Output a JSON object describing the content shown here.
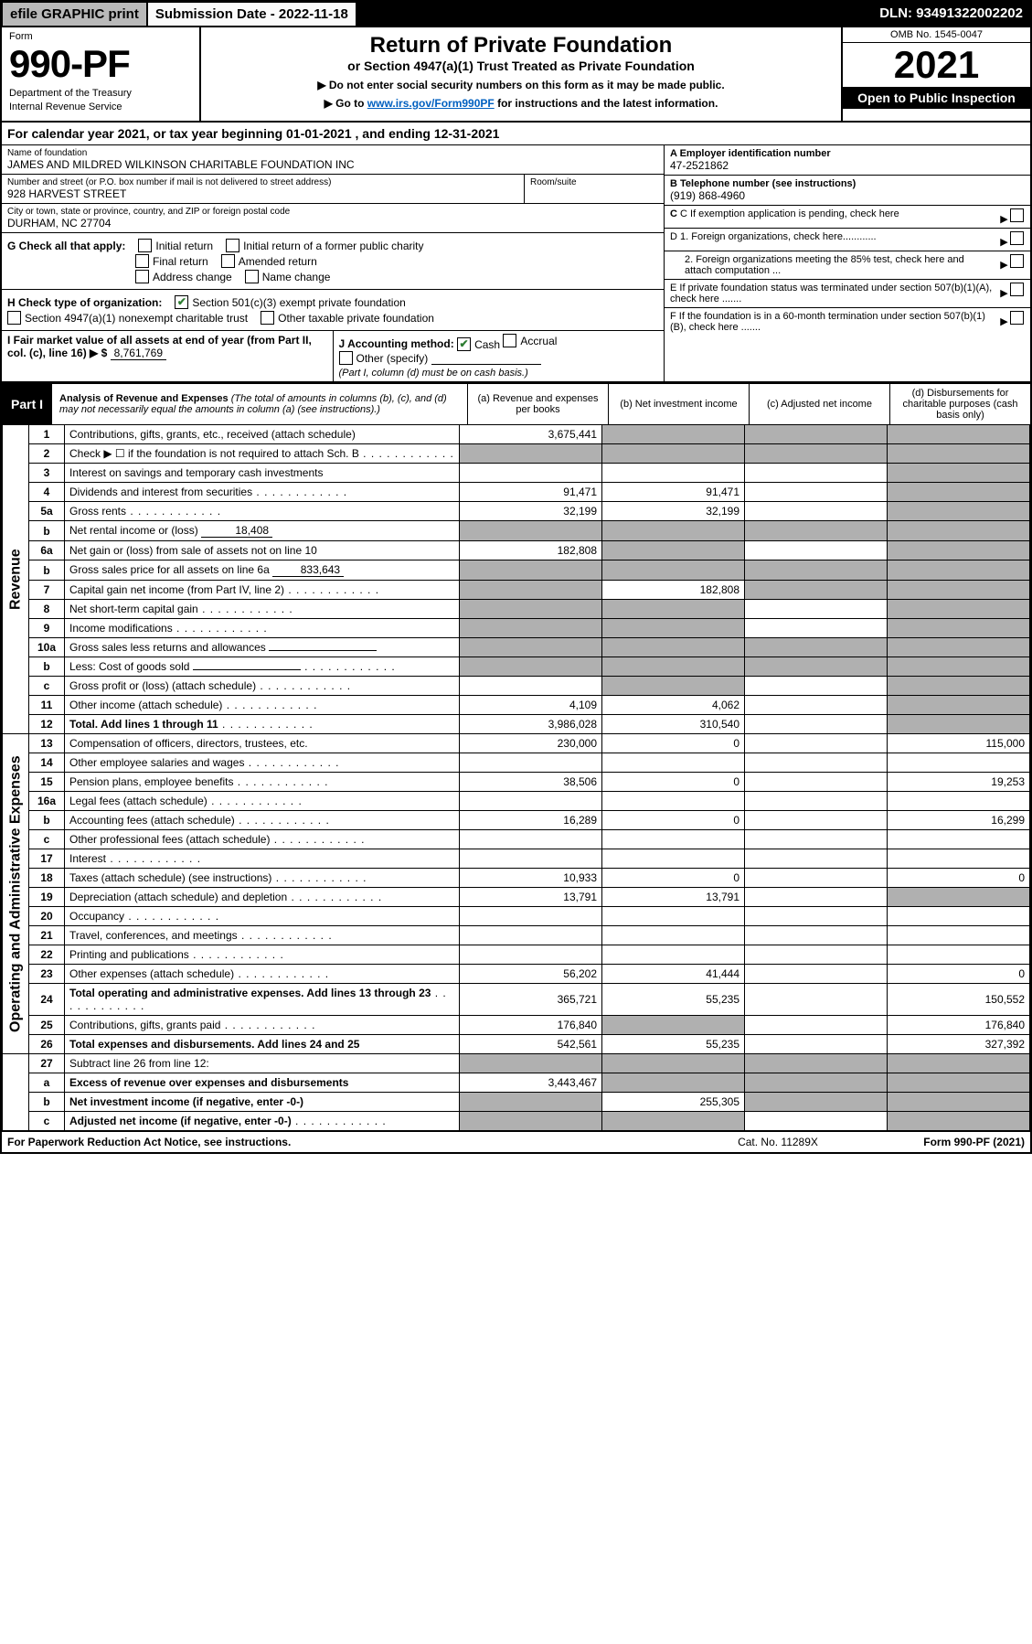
{
  "topbar": {
    "efile": "efile GRAPHIC print",
    "submission": "Submission Date - 2022-11-18",
    "dln": "DLN: 93491322002202"
  },
  "header": {
    "form_label": "Form",
    "form_number": "990-PF",
    "dept1": "Department of the Treasury",
    "dept2": "Internal Revenue Service",
    "title": "Return of Private Foundation",
    "subtitle": "or Section 4947(a)(1) Trust Treated as Private Foundation",
    "note1": "▶ Do not enter social security numbers on this form as it may be made public.",
    "note2_prefix": "▶ Go to ",
    "note2_link": "www.irs.gov/Form990PF",
    "note2_suffix": " for instructions and the latest information.",
    "omb": "OMB No. 1545-0047",
    "year": "2021",
    "inspect": "Open to Public Inspection"
  },
  "calyear": "For calendar year 2021, or tax year beginning 01-01-2021          , and ending 12-31-2021",
  "identity": {
    "name_label": "Name of foundation",
    "name": "JAMES AND MILDRED WILKINSON CHARITABLE FOUNDATION INC",
    "addr_label": "Number and street (or P.O. box number if mail is not delivered to street address)",
    "addr": "928 HARVEST STREET",
    "roomsuite": "Room/suite",
    "city_label": "City or town, state or province, country, and ZIP or foreign postal code",
    "city": "DURHAM, NC  27704",
    "ein_label": "A Employer identification number",
    "ein": "47-2521862",
    "phone_label": "B Telephone number (see instructions)",
    "phone": "(919) 868-4960",
    "c_label": "C If exemption application is pending, check here"
  },
  "checks": {
    "G": "G Check all that apply:",
    "g_items": [
      "Initial return",
      "Final return",
      "Address change",
      "Initial return of a former public charity",
      "Amended return",
      "Name change"
    ],
    "H": "H Check type of organization:",
    "h1": "Section 501(c)(3) exempt private foundation",
    "h2": "Section 4947(a)(1) nonexempt charitable trust",
    "h3": "Other taxable private foundation",
    "I_label": "I Fair market value of all assets at end of year (from Part II, col. (c), line 16) ▶ $",
    "I_value": "8,761,769",
    "J": "J Accounting method:",
    "j_cash": "Cash",
    "j_accrual": "Accrual",
    "j_other": "Other (specify)",
    "j_note": "(Part I, column (d) must be on cash basis.)",
    "D1": "D 1. Foreign organizations, check here............",
    "D2": "2. Foreign organizations meeting the 85% test, check here and attach computation ...",
    "E": "E If private foundation status was terminated under section 507(b)(1)(A), check here .......",
    "F": "F If the foundation is in a 60-month termination under section 507(b)(1)(B), check here ......."
  },
  "part1": {
    "tab": "Part I",
    "title": "Analysis of Revenue and Expenses",
    "subtitle": " (The total of amounts in columns (b), (c), and (d) may not necessarily equal the amounts in column (a) (see instructions).)",
    "cols": {
      "a": "(a) Revenue and expenses per books",
      "b": "(b) Net investment income",
      "c": "(c) Adjusted net income",
      "d": "(d) Disbursements for charitable purposes (cash basis only)"
    }
  },
  "sections": {
    "revenue": "Revenue",
    "operating": "Operating and Administrative Expenses"
  },
  "rows": [
    {
      "sec": "rev",
      "n": "1",
      "desc": "Contributions, gifts, grants, etc., received (attach schedule)",
      "a": "3,675,441",
      "b": "shade",
      "c": "shade",
      "d": "shade"
    },
    {
      "sec": "rev",
      "n": "2",
      "desc": "Check ▶ ☐ if the foundation is not required to attach Sch. B",
      "a": "shade",
      "b": "shade",
      "c": "shade",
      "d": "shade",
      "dots": true
    },
    {
      "sec": "rev",
      "n": "3",
      "desc": "Interest on savings and temporary cash investments",
      "a": "",
      "b": "",
      "c": "",
      "d": "shade"
    },
    {
      "sec": "rev",
      "n": "4",
      "desc": "Dividends and interest from securities",
      "a": "91,471",
      "b": "91,471",
      "c": "",
      "d": "shade",
      "dots": true
    },
    {
      "sec": "rev",
      "n": "5a",
      "desc": "Gross rents",
      "a": "32,199",
      "b": "32,199",
      "c": "",
      "d": "shade",
      "dots": true
    },
    {
      "sec": "rev",
      "n": "b",
      "desc": "Net rental income or (loss)",
      "inline": "18,408",
      "a": "shade",
      "b": "shade",
      "c": "shade",
      "d": "shade"
    },
    {
      "sec": "rev",
      "n": "6a",
      "desc": "Net gain or (loss) from sale of assets not on line 10",
      "a": "182,808",
      "b": "shade",
      "c": "",
      "d": "shade"
    },
    {
      "sec": "rev",
      "n": "b",
      "desc": "Gross sales price for all assets on line 6a",
      "inline": "833,643",
      "a": "shade",
      "b": "shade",
      "c": "shade",
      "d": "shade"
    },
    {
      "sec": "rev",
      "n": "7",
      "desc": "Capital gain net income (from Part IV, line 2)",
      "a": "shade",
      "b": "182,808",
      "c": "shade",
      "d": "shade",
      "dots": true
    },
    {
      "sec": "rev",
      "n": "8",
      "desc": "Net short-term capital gain",
      "a": "shade",
      "b": "shade",
      "c": "",
      "d": "shade",
      "dots": true
    },
    {
      "sec": "rev",
      "n": "9",
      "desc": "Income modifications",
      "a": "shade",
      "b": "shade",
      "c": "",
      "d": "shade",
      "dots": true
    },
    {
      "sec": "rev",
      "n": "10a",
      "desc": "Gross sales less returns and allowances",
      "inlinebox": true,
      "a": "shade",
      "b": "shade",
      "c": "shade",
      "d": "shade"
    },
    {
      "sec": "rev",
      "n": "b",
      "desc": "Less: Cost of goods sold",
      "inlinebox": true,
      "a": "shade",
      "b": "shade",
      "c": "shade",
      "d": "shade",
      "dots": true
    },
    {
      "sec": "rev",
      "n": "c",
      "desc": "Gross profit or (loss) (attach schedule)",
      "a": "",
      "b": "shade",
      "c": "",
      "d": "shade",
      "dots": true
    },
    {
      "sec": "rev",
      "n": "11",
      "desc": "Other income (attach schedule)",
      "a": "4,109",
      "b": "4,062",
      "c": "",
      "d": "shade",
      "dots": true
    },
    {
      "sec": "rev",
      "n": "12",
      "desc": "Total. Add lines 1 through 11",
      "a": "3,986,028",
      "b": "310,540",
      "c": "",
      "d": "shade",
      "bold": true,
      "dots": true
    },
    {
      "sec": "op",
      "n": "13",
      "desc": "Compensation of officers, directors, trustees, etc.",
      "a": "230,000",
      "b": "0",
      "c": "",
      "d": "115,000"
    },
    {
      "sec": "op",
      "n": "14",
      "desc": "Other employee salaries and wages",
      "a": "",
      "b": "",
      "c": "",
      "d": "",
      "dots": true
    },
    {
      "sec": "op",
      "n": "15",
      "desc": "Pension plans, employee benefits",
      "a": "38,506",
      "b": "0",
      "c": "",
      "d": "19,253",
      "dots": true
    },
    {
      "sec": "op",
      "n": "16a",
      "desc": "Legal fees (attach schedule)",
      "a": "",
      "b": "",
      "c": "",
      "d": "",
      "dots": true
    },
    {
      "sec": "op",
      "n": "b",
      "desc": "Accounting fees (attach schedule)",
      "a": "16,289",
      "b": "0",
      "c": "",
      "d": "16,299",
      "dots": true
    },
    {
      "sec": "op",
      "n": "c",
      "desc": "Other professional fees (attach schedule)",
      "a": "",
      "b": "",
      "c": "",
      "d": "",
      "dots": true
    },
    {
      "sec": "op",
      "n": "17",
      "desc": "Interest",
      "a": "",
      "b": "",
      "c": "",
      "d": "",
      "dots": true
    },
    {
      "sec": "op",
      "n": "18",
      "desc": "Taxes (attach schedule) (see instructions)",
      "a": "10,933",
      "b": "0",
      "c": "",
      "d": "0",
      "dots": true
    },
    {
      "sec": "op",
      "n": "19",
      "desc": "Depreciation (attach schedule) and depletion",
      "a": "13,791",
      "b": "13,791",
      "c": "",
      "d": "shade",
      "dots": true
    },
    {
      "sec": "op",
      "n": "20",
      "desc": "Occupancy",
      "a": "",
      "b": "",
      "c": "",
      "d": "",
      "dots": true
    },
    {
      "sec": "op",
      "n": "21",
      "desc": "Travel, conferences, and meetings",
      "a": "",
      "b": "",
      "c": "",
      "d": "",
      "dots": true
    },
    {
      "sec": "op",
      "n": "22",
      "desc": "Printing and publications",
      "a": "",
      "b": "",
      "c": "",
      "d": "",
      "dots": true
    },
    {
      "sec": "op",
      "n": "23",
      "desc": "Other expenses (attach schedule)",
      "a": "56,202",
      "b": "41,444",
      "c": "",
      "d": "0",
      "dots": true
    },
    {
      "sec": "op",
      "n": "24",
      "desc": "Total operating and administrative expenses. Add lines 13 through 23",
      "a": "365,721",
      "b": "55,235",
      "c": "",
      "d": "150,552",
      "bold": true,
      "dots": true
    },
    {
      "sec": "op",
      "n": "25",
      "desc": "Contributions, gifts, grants paid",
      "a": "176,840",
      "b": "shade",
      "c": "",
      "d": "176,840",
      "dots": true
    },
    {
      "sec": "op",
      "n": "26",
      "desc": "Total expenses and disbursements. Add lines 24 and 25",
      "a": "542,561",
      "b": "55,235",
      "c": "",
      "d": "327,392",
      "bold": true
    },
    {
      "sec": "none",
      "n": "27",
      "desc": "Subtract line 26 from line 12:",
      "a": "shade",
      "b": "shade",
      "c": "shade",
      "d": "shade"
    },
    {
      "sec": "none",
      "n": "a",
      "desc": "Excess of revenue over expenses and disbursements",
      "a": "3,443,467",
      "b": "shade",
      "c": "shade",
      "d": "shade",
      "bold": true
    },
    {
      "sec": "none",
      "n": "b",
      "desc": "Net investment income (if negative, enter -0-)",
      "a": "shade",
      "b": "255,305",
      "c": "shade",
      "d": "shade",
      "bold": true
    },
    {
      "sec": "none",
      "n": "c",
      "desc": "Adjusted net income (if negative, enter -0-)",
      "a": "shade",
      "b": "shade",
      "c": "",
      "d": "shade",
      "bold": true,
      "dots": true
    }
  ],
  "footer": {
    "left": "For Paperwork Reduction Act Notice, see instructions.",
    "center": "Cat. No. 11289X",
    "right": "Form 990-PF (2021)"
  }
}
